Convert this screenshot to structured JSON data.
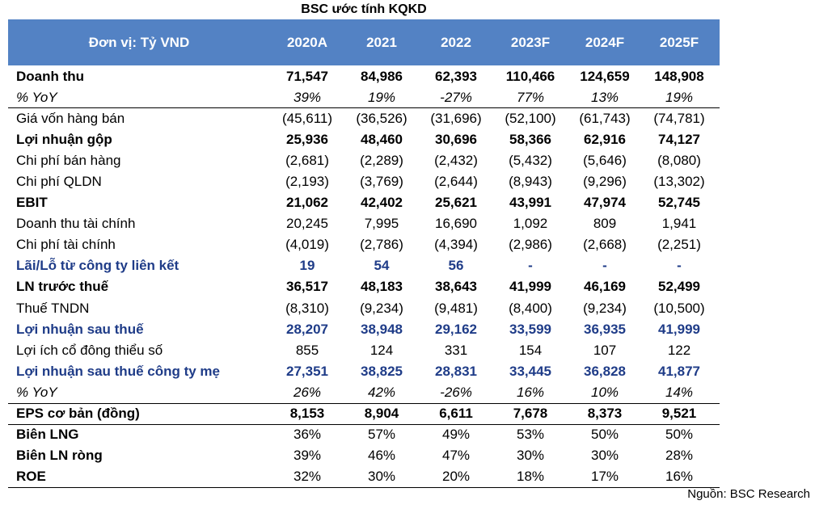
{
  "title": "BSC ước tính KQKD",
  "header": {
    "unit": "Đơn vị: Tỷ VND",
    "years": [
      "2020A",
      "2021",
      "2022",
      "2023F",
      "2024F",
      "2025F"
    ]
  },
  "rows": [
    {
      "label": "Doanh thu",
      "values": [
        "71,547",
        "84,986",
        "62,393",
        "110,466",
        "124,659",
        "148,908"
      ],
      "style": "bold"
    },
    {
      "label": "% YoY",
      "values": [
        "39%",
        "19%",
        "-27%",
        "77%",
        "13%",
        "19%"
      ],
      "style": "italic"
    },
    {
      "label": "Giá vốn hàng bán",
      "values": [
        "(45,611)",
        "(36,526)",
        "(31,696)",
        "(52,100)",
        "(61,743)",
        "(74,781)"
      ],
      "style": "normal sep"
    },
    {
      "label": "Lợi nhuận gộp",
      "values": [
        "25,936",
        "48,460",
        "30,696",
        "58,366",
        "62,916",
        "74,127"
      ],
      "style": "bold"
    },
    {
      "label": "Chi phí bán hàng",
      "values": [
        "(2,681)",
        "(2,289)",
        "(2,432)",
        "(5,432)",
        "(5,646)",
        "(8,080)"
      ],
      "style": "normal"
    },
    {
      "label": "Chi phí QLDN",
      "values": [
        "(2,193)",
        "(3,769)",
        "(2,644)",
        "(8,943)",
        "(9,296)",
        "(13,302)"
      ],
      "style": "normal"
    },
    {
      "label": "EBIT",
      "values": [
        "21,062",
        "42,402",
        "25,621",
        "43,991",
        "47,974",
        "52,745"
      ],
      "style": "bold"
    },
    {
      "label": "Doanh thu tài chính",
      "values": [
        "20,245",
        "7,995",
        "16,690",
        "1,092",
        "809",
        "1,941"
      ],
      "style": "normal"
    },
    {
      "label": "Chi phí tài chính",
      "values": [
        "(4,019)",
        "(2,786)",
        "(4,394)",
        "(2,986)",
        "(2,668)",
        "(2,251)"
      ],
      "style": "normal"
    },
    {
      "label": "Lãi/Lỗ từ công ty liên kết",
      "values": [
        "19",
        "54",
        "56",
        "-",
        "-",
        "-"
      ],
      "style": "blue"
    },
    {
      "label": "LN trước thuế",
      "values": [
        "36,517",
        "48,183",
        "38,643",
        "41,999",
        "46,169",
        "52,499"
      ],
      "style": "bold"
    },
    {
      "label": "Thuế TNDN",
      "values": [
        "(8,310)",
        "(9,234)",
        "(9,481)",
        "(8,400)",
        "(9,234)",
        "(10,500)"
      ],
      "style": "normal"
    },
    {
      "label": "Lợi nhuận sau thuế",
      "values": [
        "28,207",
        "38,948",
        "29,162",
        "33,599",
        "36,935",
        "41,999"
      ],
      "style": "blue"
    },
    {
      "label": "Lợi ích cổ đông thiểu số",
      "values": [
        "855",
        "124",
        "331",
        "154",
        "107",
        "122"
      ],
      "style": "normal"
    },
    {
      "label": "Lợi nhuận sau thuế công ty mẹ",
      "values": [
        "27,351",
        "38,825",
        "28,831",
        "33,445",
        "36,828",
        "41,877"
      ],
      "style": "blue"
    },
    {
      "label": "% YoY",
      "values": [
        "26%",
        "42%",
        "-26%",
        "16%",
        "10%",
        "14%"
      ],
      "style": "italic"
    },
    {
      "label": "EPS cơ bản (đồng)",
      "values": [
        "8,153",
        "8,904",
        "6,611",
        "7,678",
        "8,373",
        "9,521"
      ],
      "style": "bold sep"
    },
    {
      "label": "Biên LNG",
      "values": [
        "36%",
        "57%",
        "49%",
        "53%",
        "50%",
        "50%"
      ],
      "style": "boldlabel sep"
    },
    {
      "label": "Biên LN ròng",
      "values": [
        "39%",
        "46%",
        "47%",
        "30%",
        "30%",
        "28%"
      ],
      "style": "boldlabel"
    },
    {
      "label": "ROE",
      "values": [
        "32%",
        "30%",
        "20%",
        "18%",
        "17%",
        "16%"
      ],
      "style": "boldlabel last"
    }
  ],
  "source": "Nguồn: BSC Research",
  "colors": {
    "header_bg": "#5382c4",
    "blue_text": "#1f3c88"
  }
}
